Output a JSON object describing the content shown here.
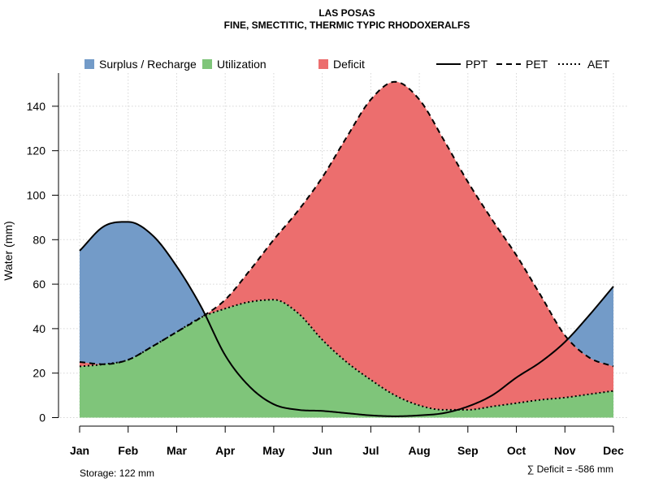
{
  "chart_data": {
    "type": "area",
    "title": "LAS POSAS",
    "subtitle": "FINE, SMECTITIC, THERMIC TYPIC RHODOXERALFS",
    "xlabel": "",
    "ylabel": "Water (mm)",
    "categories": [
      "Jan",
      "Feb",
      "Mar",
      "Apr",
      "May",
      "Jun",
      "Jul",
      "Aug",
      "Sep",
      "Oct",
      "Nov",
      "Dec"
    ],
    "ylim": [
      0,
      152
    ],
    "yticks": [
      0,
      20,
      40,
      60,
      80,
      100,
      120,
      140
    ],
    "grid": true,
    "series": [
      {
        "name": "PPT",
        "style": "solid",
        "values": [
          [
            0,
            75
          ],
          [
            0.5,
            86
          ],
          [
            1,
            88
          ],
          [
            1.5,
            82
          ],
          [
            2,
            68
          ],
          [
            2.5,
            50
          ],
          [
            3,
            28
          ],
          [
            3.5,
            14
          ],
          [
            4,
            6
          ],
          [
            4.5,
            3.5
          ],
          [
            5,
            3
          ],
          [
            5.5,
            2
          ],
          [
            6,
            1
          ],
          [
            6.5,
            0.6
          ],
          [
            7,
            1
          ],
          [
            7.5,
            2
          ],
          [
            8,
            5
          ],
          [
            8.5,
            10
          ],
          [
            9,
            18
          ],
          [
            9.5,
            25
          ],
          [
            10,
            34
          ],
          [
            10.5,
            46
          ],
          [
            11,
            59
          ]
        ]
      },
      {
        "name": "PET",
        "style": "dashed",
        "values": [
          [
            0,
            25
          ],
          [
            0.5,
            24
          ],
          [
            1,
            26
          ],
          [
            1.5,
            32
          ],
          [
            2,
            38.5
          ],
          [
            2.5,
            45
          ],
          [
            3,
            53
          ],
          [
            3.5,
            66
          ],
          [
            4,
            80
          ],
          [
            4.5,
            93
          ],
          [
            5,
            108
          ],
          [
            5.5,
            126
          ],
          [
            6,
            143
          ],
          [
            6.5,
            151
          ],
          [
            7,
            143
          ],
          [
            7.5,
            125
          ],
          [
            8,
            106
          ],
          [
            8.5,
            89
          ],
          [
            9,
            73
          ],
          [
            9.5,
            55
          ],
          [
            10,
            37
          ],
          [
            10.5,
            27
          ],
          [
            11,
            23
          ]
        ]
      },
      {
        "name": "AET",
        "style": "dotted",
        "values": [
          [
            0,
            23
          ],
          [
            0.5,
            24
          ],
          [
            1,
            26
          ],
          [
            1.5,
            32
          ],
          [
            2,
            38.5
          ],
          [
            2.5,
            45
          ],
          [
            3,
            49
          ],
          [
            3.5,
            52
          ],
          [
            4,
            53
          ],
          [
            4.5,
            47
          ],
          [
            5,
            35
          ],
          [
            5.5,
            25
          ],
          [
            6,
            17
          ],
          [
            6.5,
            10
          ],
          [
            7,
            5.5
          ],
          [
            7.5,
            3.5
          ],
          [
            8,
            3.5
          ],
          [
            8.5,
            5
          ],
          [
            9,
            6.5
          ],
          [
            9.5,
            8
          ],
          [
            10,
            9
          ],
          [
            10.5,
            10.5
          ],
          [
            11,
            12
          ]
        ]
      }
    ],
    "legend": {
      "position": "top",
      "fills": [
        {
          "name": "Surplus / Recharge",
          "color": "#739BC8"
        },
        {
          "name": "Utilization",
          "color": "#7FC57A"
        },
        {
          "name": "Deficit",
          "color": "#EC6E6E"
        }
      ],
      "lines": [
        {
          "name": "PPT",
          "style": "solid"
        },
        {
          "name": "PET",
          "style": "dashed"
        },
        {
          "name": "AET",
          "style": "dotted"
        }
      ]
    },
    "annotations": {
      "storage": "Storage: 122 mm",
      "deficit": "∑ Deficit = -586 mm"
    }
  }
}
